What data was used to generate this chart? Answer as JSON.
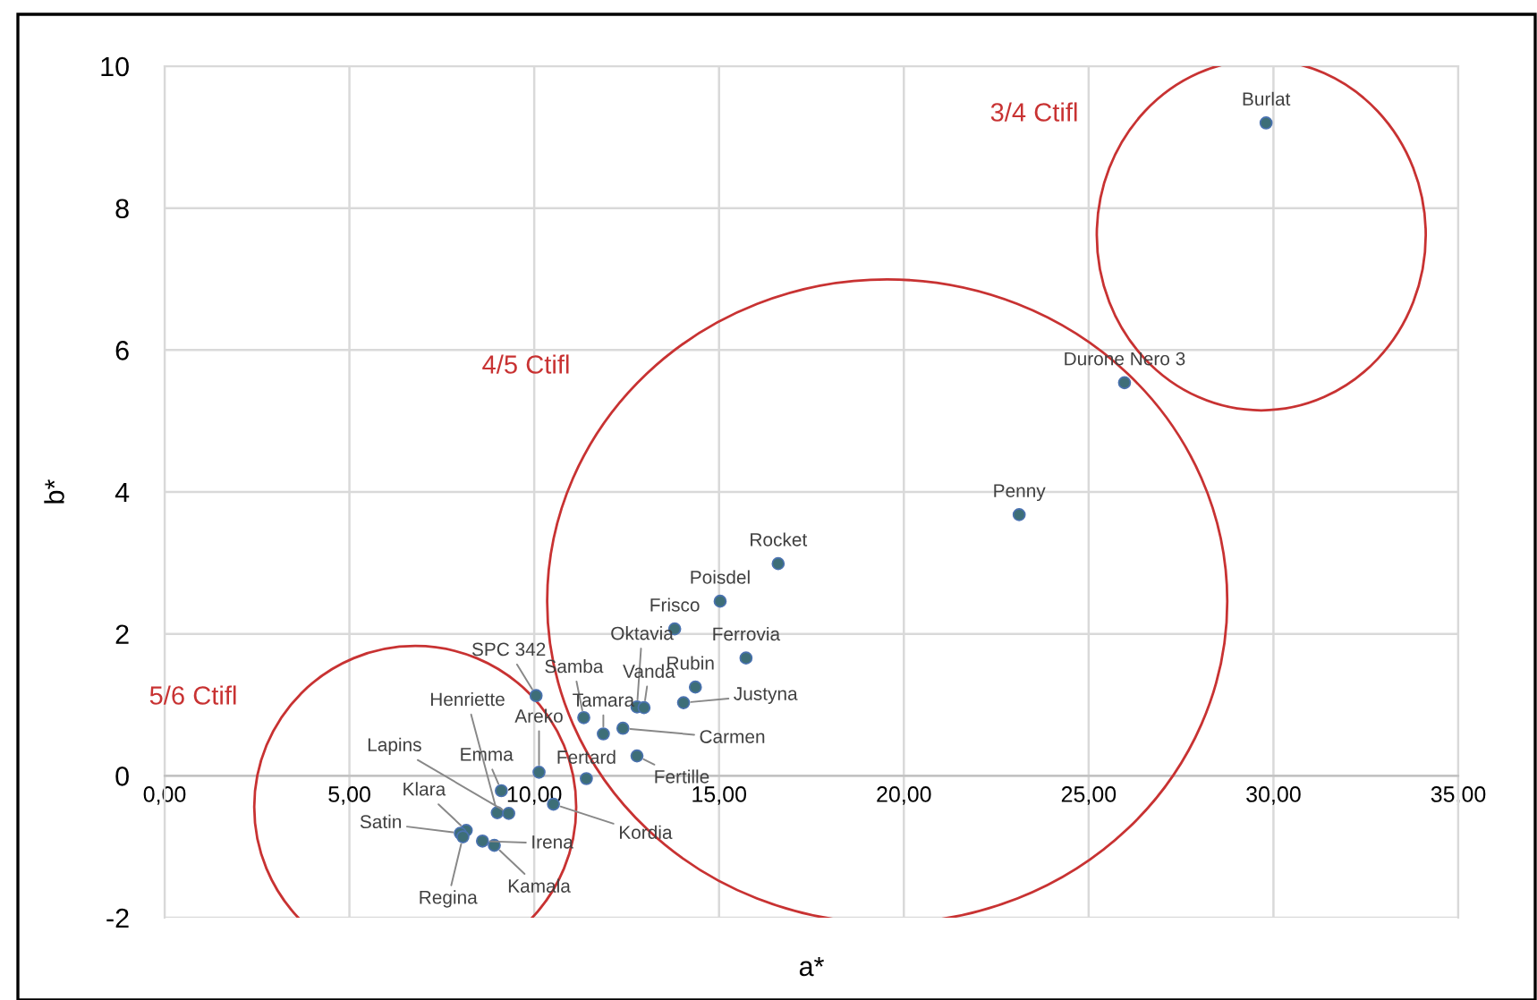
{
  "chart_data": {
    "type": "scatter",
    "xlabel": "a*",
    "ylabel": "b*",
    "xlim": [
      0,
      35
    ],
    "xticks": [
      {
        "value": 0,
        "label": "0,00"
      },
      {
        "value": 5,
        "label": "5,00"
      },
      {
        "value": 10,
        "label": "10,00"
      },
      {
        "value": 15,
        "label": "15,00"
      },
      {
        "value": 20,
        "label": "20,00"
      },
      {
        "value": 25,
        "label": "25,00"
      },
      {
        "value": 30,
        "label": "30,00"
      },
      {
        "value": 35,
        "label": "35,00"
      }
    ],
    "ylim": [
      -2,
      10
    ],
    "yticks": [
      -2,
      0,
      2,
      4,
      6,
      8,
      10
    ],
    "grid": true,
    "marker": "circle",
    "annotations": [
      "3/4 Ctifl",
      "4/5 Ctifl",
      "5/6 Ctifl"
    ],
    "series": [
      {
        "name": "Burlat",
        "color": "#3d6e78",
        "x": [
          29.8
        ],
        "values": [
          9.2
        ]
      },
      {
        "name": "Durone Nero 3",
        "color": "#3d6e78",
        "x": [
          25.97
        ],
        "values": [
          5.54
        ]
      },
      {
        "name": "Penny",
        "color": "#3d6e78",
        "x": [
          23.12
        ],
        "values": [
          3.68
        ]
      },
      {
        "name": "Rocket",
        "color": "#3d6e78",
        "x": [
          16.6
        ],
        "values": [
          2.99
        ]
      },
      {
        "name": "Poisdel",
        "color": "#3d6e78",
        "x": [
          15.03
        ],
        "values": [
          2.46
        ]
      },
      {
        "name": "Frisco",
        "color": "#3d6e78",
        "x": [
          13.8
        ],
        "values": [
          2.07
        ]
      },
      {
        "name": "Ferrovia",
        "color": "#3d6e78",
        "x": [
          15.73
        ],
        "values": [
          1.66
        ]
      },
      {
        "name": "SPC 342",
        "color": "#3d6e78",
        "x": [
          10.05
        ],
        "values": [
          1.13
        ]
      },
      {
        "name": "Samba",
        "color": "#3d6e78",
        "x": [
          11.34
        ],
        "values": [
          0.82
        ]
      },
      {
        "name": "Oktavia",
        "color": "#3d6e78",
        "x": [
          12.78
        ],
        "values": [
          0.97
        ]
      },
      {
        "name": "Vanda",
        "color": "#3d6e78",
        "x": [
          12.97
        ],
        "values": [
          0.96
        ]
      },
      {
        "name": "Rubin",
        "color": "#3d6e78",
        "x": [
          14.36
        ],
        "values": [
          1.25
        ]
      },
      {
        "name": "Justyna",
        "color": "#3d6e78",
        "x": [
          14.04
        ],
        "values": [
          1.03
        ]
      },
      {
        "name": "Tamara",
        "color": "#3d6e78",
        "x": [
          11.87
        ],
        "values": [
          0.59
        ]
      },
      {
        "name": "Carmen",
        "color": "#3d6e78",
        "x": [
          12.4
        ],
        "values": [
          0.67
        ]
      },
      {
        "name": "Fertard",
        "color": "#3d6e78",
        "x": [
          11.41
        ],
        "values": [
          -0.04
        ]
      },
      {
        "name": "Fertille",
        "color": "#3d6e78",
        "x": [
          12.78
        ],
        "values": [
          0.28
        ]
      },
      {
        "name": "Areko",
        "color": "#3d6e78",
        "x": [
          10.13
        ],
        "values": [
          0.05
        ]
      },
      {
        "name": "Henriette",
        "color": "#3d6e78",
        "x": [
          9.0
        ],
        "values": [
          -0.52
        ]
      },
      {
        "name": "Emma",
        "color": "#3d6e78",
        "x": [
          9.11
        ],
        "values": [
          -0.21
        ]
      },
      {
        "name": "Lapins",
        "color": "#3d6e78",
        "x": [
          9.31
        ],
        "values": [
          -0.53
        ]
      },
      {
        "name": "Kordia",
        "color": "#3d6e78",
        "x": [
          10.52
        ],
        "values": [
          -0.4
        ]
      },
      {
        "name": "Klara",
        "color": "#3d6e78",
        "x": [
          8.16
        ],
        "values": [
          -0.77
        ]
      },
      {
        "name": "Satin",
        "color": "#3d6e78",
        "x": [
          8.0
        ],
        "values": [
          -0.81
        ]
      },
      {
        "name": "Regina",
        "color": "#3d6e78",
        "x": [
          8.07
        ],
        "values": [
          -0.86
        ]
      },
      {
        "name": "Irena",
        "color": "#3d6e78",
        "x": [
          8.6
        ],
        "values": [
          -0.92
        ]
      },
      {
        "name": "Kamala",
        "color": "#3d6e78",
        "x": [
          8.92
        ],
        "values": [
          -0.98
        ]
      }
    ]
  }
}
